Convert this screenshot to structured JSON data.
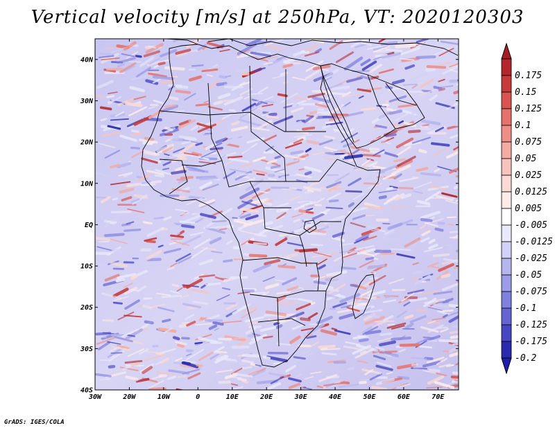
{
  "title": "Vertical velocity [m/s] at 250hPa, VT: 2020120303",
  "credit": "GrADS: IGES/COLA",
  "map": {
    "region": "Africa",
    "lon_range": [
      -30,
      76
    ],
    "lat_range": [
      -40,
      45
    ],
    "lat_ticks": [
      {
        "value": 40,
        "label": "40N"
      },
      {
        "value": 30,
        "label": "30N"
      },
      {
        "value": 20,
        "label": "20N"
      },
      {
        "value": 10,
        "label": "10N"
      },
      {
        "value": 0,
        "label": "EQ"
      },
      {
        "value": -10,
        "label": "10S"
      },
      {
        "value": -20,
        "label": "20S"
      },
      {
        "value": -30,
        "label": "30S"
      },
      {
        "value": -40,
        "label": "40S"
      }
    ],
    "lon_ticks": [
      {
        "value": -30,
        "label": "30W"
      },
      {
        "value": -20,
        "label": "20W"
      },
      {
        "value": -10,
        "label": "10W"
      },
      {
        "value": 0,
        "label": "0"
      },
      {
        "value": 10,
        "label": "10E"
      },
      {
        "value": 20,
        "label": "20E"
      },
      {
        "value": 30,
        "label": "30E"
      },
      {
        "value": 40,
        "label": "40E"
      },
      {
        "value": 50,
        "label": "50E"
      },
      {
        "value": 60,
        "label": "60E"
      },
      {
        "value": 70,
        "label": "70E"
      }
    ]
  },
  "colorbar": {
    "levels": [
      {
        "label": "0.175",
        "color": "#b3262b"
      },
      {
        "label": "0.15",
        "color": "#c73a3a"
      },
      {
        "label": "0.125",
        "color": "#d9534f"
      },
      {
        "label": "0.1",
        "color": "#e6726b"
      },
      {
        "label": "0.075",
        "color": "#ee8e86"
      },
      {
        "label": "0.05",
        "color": "#f3aba3"
      },
      {
        "label": "0.025",
        "color": "#f7c4bd"
      },
      {
        "label": "0.0125",
        "color": "#fadad5"
      },
      {
        "label": "0.005",
        "color": "#fcebe9"
      },
      {
        "label": "-0.005",
        "color": "#ffffff"
      },
      {
        "label": "-0.0125",
        "color": "#e9e9fb"
      },
      {
        "label": "-0.025",
        "color": "#d2d2f6"
      },
      {
        "label": "-0.05",
        "color": "#b6b6ef"
      },
      {
        "label": "-0.075",
        "color": "#9c9ce8"
      },
      {
        "label": "-0.1",
        "color": "#8080de"
      },
      {
        "label": "-0.125",
        "color": "#6464d2"
      },
      {
        "label": "-0.175",
        "color": "#4747c3"
      },
      {
        "label": "-0.2",
        "color": "#2a2ab0"
      }
    ],
    "top_extension_color": "#a81d23",
    "bottom_extension_color": "#1f1fa8"
  }
}
